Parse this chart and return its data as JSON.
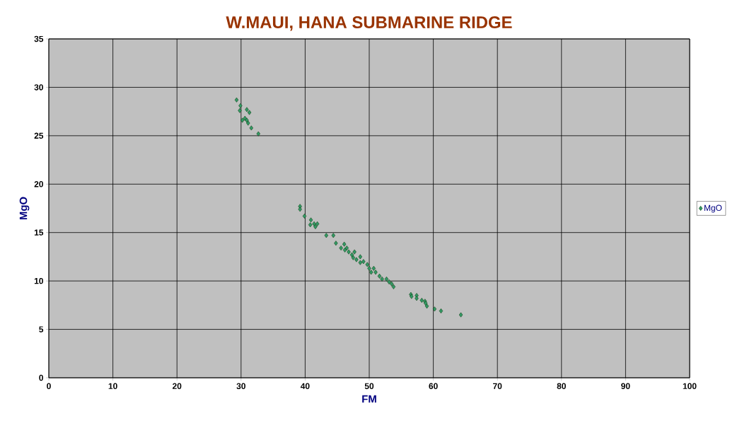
{
  "chart_data": {
    "type": "scatter",
    "title": "W.MAUI, HANA SUBMARINE RIDGE",
    "xlabel": "FM",
    "ylabel": "MgO",
    "xlim": [
      0,
      100
    ],
    "ylim": [
      0,
      35
    ],
    "xticks": [
      0,
      10,
      20,
      30,
      40,
      50,
      60,
      70,
      80,
      90,
      100
    ],
    "yticks": [
      0,
      5,
      10,
      15,
      20,
      25,
      30,
      35
    ],
    "grid": true,
    "legend": "right",
    "marker": "diamond",
    "series": [
      {
        "name": "MgO",
        "color": "#339966",
        "x": [
          29.3,
          29.9,
          29.8,
          30.9,
          31.3,
          30.6,
          30.2,
          30.9,
          31.1,
          31.6,
          32.7,
          39.2,
          39.2,
          39.9,
          40.9,
          40.8,
          41.4,
          41.9,
          41.6,
          43.3,
          44.4,
          44.8,
          46.1,
          45.6,
          46.5,
          46.2,
          46.8,
          47.7,
          47.3,
          47.5,
          48.6,
          48.0,
          48.6,
          49.1,
          49.7,
          50.0,
          50.7,
          50.3,
          51.0,
          51.6,
          52.0,
          52.7,
          53.1,
          53.5,
          53.8,
          56.5,
          56.6,
          57.4,
          57.4,
          58.2,
          58.7,
          58.8,
          59.0,
          60.2,
          61.2,
          64.3
        ],
        "values": [
          28.7,
          28.1,
          27.6,
          27.7,
          27.4,
          26.8,
          26.6,
          26.6,
          26.3,
          25.8,
          25.2,
          17.7,
          17.4,
          16.7,
          16.3,
          15.8,
          15.9,
          15.9,
          15.6,
          14.7,
          14.7,
          13.9,
          13.8,
          13.4,
          13.4,
          13.2,
          13.0,
          13.0,
          12.7,
          12.4,
          12.5,
          12.2,
          11.9,
          12.0,
          11.7,
          11.3,
          11.3,
          10.9,
          10.9,
          10.5,
          10.2,
          10.2,
          9.9,
          9.7,
          9.4,
          8.6,
          8.4,
          8.5,
          8.2,
          8.0,
          7.9,
          7.7,
          7.4,
          7.1,
          6.9,
          6.5
        ]
      }
    ]
  }
}
